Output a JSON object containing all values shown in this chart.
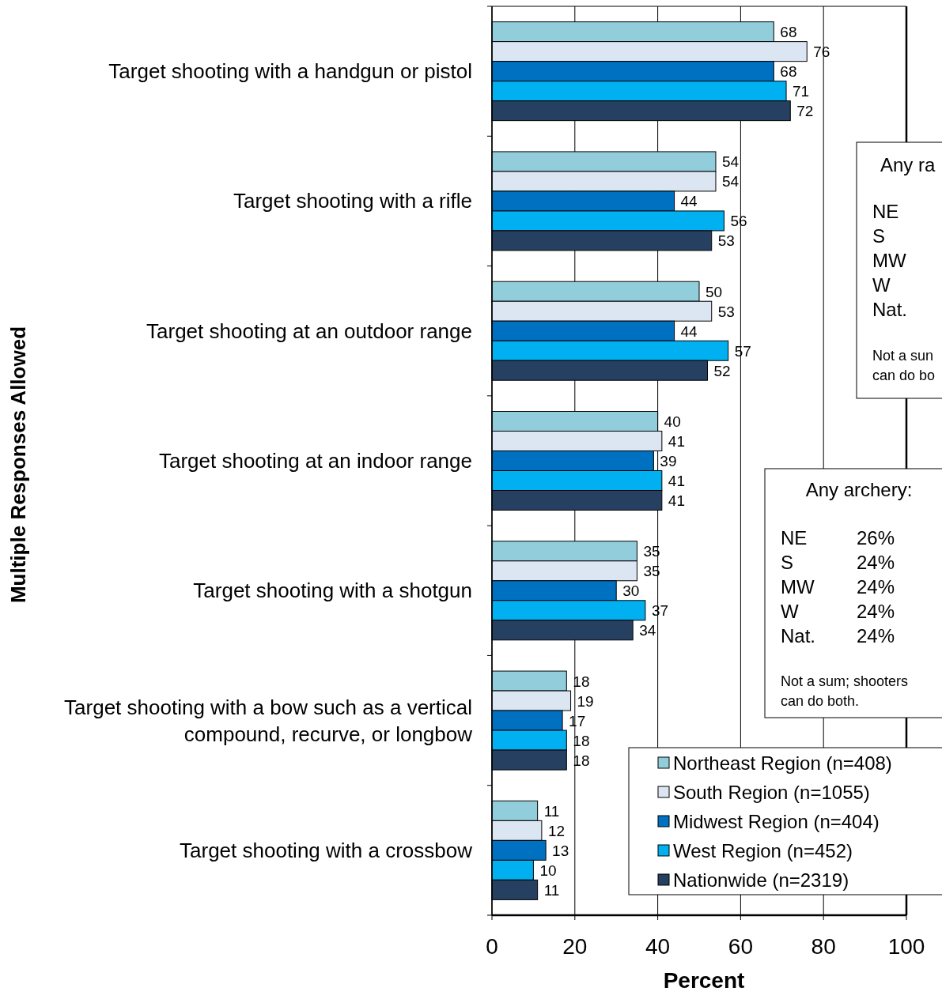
{
  "chart_data": {
    "type": "bar",
    "orientation": "horizontal",
    "xlabel": "Percent",
    "ylabel": "Multiple Responses Allowed",
    "categories": [
      "Target shooting with a handgun or pistol",
      "Target shooting with a rifle",
      "Target shooting at an outdoor range",
      "Target shooting at an indoor range",
      "Target shooting with a shotgun",
      "Target shooting with a bow such as a vertical\ncompound, recurve, or longbow",
      "Target shooting with a crossbow"
    ],
    "series": [
      {
        "name": "Northeast Region (n=408)",
        "color": "#92cddc",
        "values": [
          68,
          54,
          50,
          40,
          35,
          18,
          11
        ]
      },
      {
        "name": "South Region (n=1055)",
        "color": "#dce6f2",
        "values": [
          76,
          54,
          53,
          41,
          35,
          19,
          12
        ]
      },
      {
        "name": "Midwest Region (n=404)",
        "color": "#0070c0",
        "values": [
          68,
          44,
          44,
          39,
          30,
          17,
          13
        ]
      },
      {
        "name": "West Region (n=452)",
        "color": "#00b0f0",
        "values": [
          71,
          56,
          57,
          41,
          37,
          18,
          10
        ]
      },
      {
        "name": "Nationwide (n=2319)",
        "color": "#254061",
        "values": [
          72,
          53,
          52,
          41,
          34,
          18,
          11
        ]
      }
    ],
    "xlim": [
      0,
      100
    ],
    "xticks": [
      0,
      20,
      40,
      60,
      80,
      100
    ],
    "grid": "x",
    "legend": "bottom right",
    "data_labels": true,
    "annotations": [
      "Any ra",
      "NE\nS\nMW\nW\nNat.",
      "Not a sun\ncan do bo",
      "Any archery:",
      "NE\nS\nMW\nW\nNat.",
      "26%\n24%\n24%\n24%\n24%",
      "Not a sum; shooters\ncan do both."
    ]
  }
}
